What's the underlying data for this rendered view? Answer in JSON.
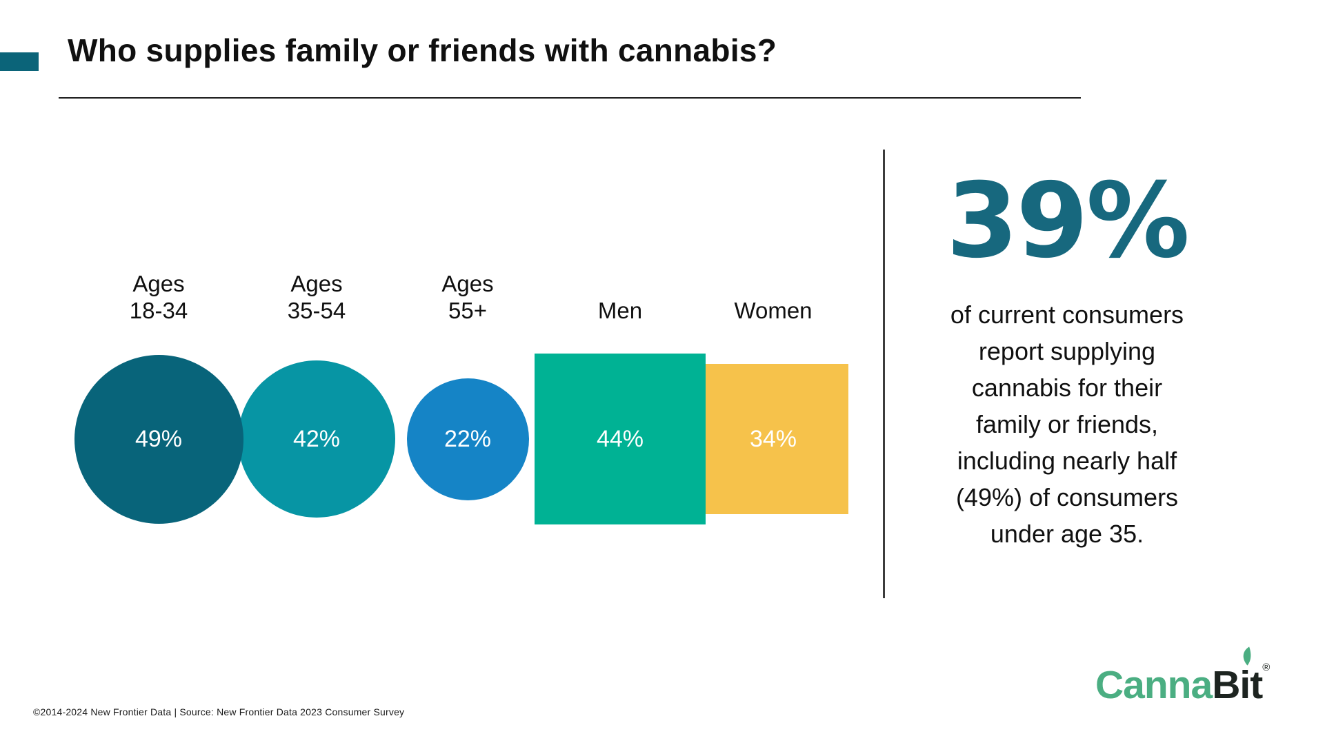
{
  "page": {
    "title": "Who supplies family or friends with cannabis?"
  },
  "accent_color": "#0B6479",
  "chart_data": {
    "type": "bubble",
    "title": "Who supplies family or friends with cannabis?",
    "categories": [
      "Ages 18-34",
      "Ages 35-54",
      "Ages 55+",
      "Men",
      "Women"
    ],
    "values": [
      49,
      42,
      22,
      44,
      34
    ],
    "legend": "none",
    "axes": "none",
    "value_label_color": "#FFFFFF",
    "items": [
      {
        "category": "Ages 18-34",
        "label": "Ages\n18-34",
        "value": 49,
        "value_label": "49%",
        "shape": "circle",
        "color": "#08647A"
      },
      {
        "category": "Ages 35-54",
        "label": "Ages\n35-54",
        "value": 42,
        "value_label": "42%",
        "shape": "circle",
        "color": "#0795A4"
      },
      {
        "category": "Ages 55+",
        "label": "Ages\n55+",
        "value": 22,
        "value_label": "22%",
        "shape": "circle",
        "color": "#1584C6"
      },
      {
        "category": "Men",
        "label": "Men",
        "value": 44,
        "value_label": "44%",
        "shape": "square",
        "color": "#00B294"
      },
      {
        "category": "Women",
        "label": "Women",
        "value": 34,
        "value_label": "34%",
        "shape": "square",
        "color": "#F6C24B"
      }
    ]
  },
  "callout": {
    "stat": "39%",
    "stat_color": "#17687E",
    "text": "of current consumers\nreport supplying\ncannabis for their\nfamily or friends,\nincluding nearly half\n(49%) of consumers\nunder age 35."
  },
  "footer": {
    "copyright": "©2014-2024 New Frontier Data | Source: New Frontier Data 2023 Consumer Survey",
    "logo": {
      "part1": "Canna",
      "part2": "Bit",
      "registered": "®",
      "part1_color": "#4BAE82",
      "part2_color": "#1D2420",
      "leaf_color": "#4BAE82"
    }
  }
}
